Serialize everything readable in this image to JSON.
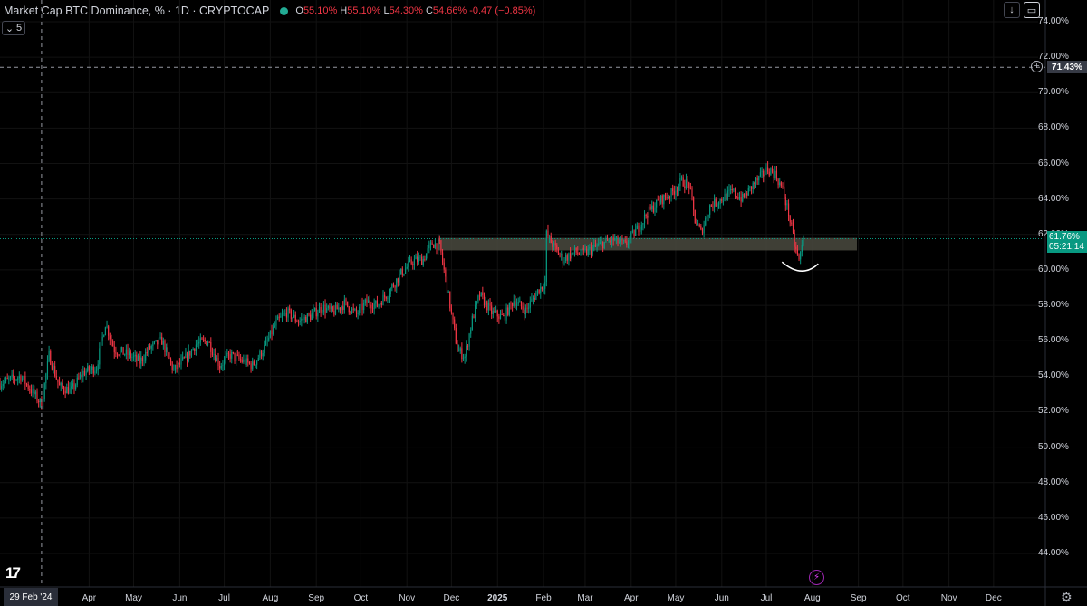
{
  "legend": {
    "title": "Market Cap BTC Dominance, % · 1D · CRYPTOCAP",
    "open_label": "O",
    "open": "55.10%",
    "high_label": "H",
    "high": "55.10%",
    "low_label": "L",
    "low": "54.30%",
    "close_label": "C",
    "close": "54.66%",
    "change": "-0.47 (−0.85%)"
  },
  "collapse_count": "5",
  "price_tag": {
    "value": "61.76%",
    "countdown": "05:21:14"
  },
  "crosshair_tag": "71.43%",
  "date_tag": "29 Feb '24",
  "icons": {
    "logo": "tradingview-logo-icon",
    "download": "arrow-down-icon",
    "fullscreen": "screen-icon",
    "add": "plus-circle-icon",
    "lightning": "lightning-icon",
    "settings": "gear-icon"
  },
  "colors": {
    "up": "#089981",
    "down": "#f23645",
    "zone": "#4a4a3f",
    "accent": "#22ab94"
  },
  "chart_data": {
    "type": "candlestick",
    "title": "Market Cap BTC Dominance, % · 1D · CRYPTOCAP",
    "ylim": [
      43,
      74.8
    ],
    "y_ticks": [
      "74.00%",
      "72.00%",
      "70.00%",
      "68.00%",
      "66.00%",
      "64.00%",
      "62.00%",
      "60.00%",
      "58.00%",
      "56.00%",
      "54.00%",
      "52.00%",
      "50.00%",
      "48.00%",
      "46.00%",
      "44.00%"
    ],
    "y_tick_values": [
      74,
      72,
      70,
      68,
      66,
      64,
      62,
      60,
      58,
      56,
      54,
      52,
      50,
      48,
      46,
      44
    ],
    "x_ticks": [
      "Apr",
      "May",
      "Jun",
      "Jul",
      "Aug",
      "Sep",
      "Oct",
      "Nov",
      "Dec",
      "2025",
      "Feb",
      "Mar",
      "Apr",
      "May",
      "Jun",
      "Jul",
      "Aug",
      "Sep",
      "Oct",
      "Nov",
      "Dec"
    ],
    "x_tick_dates": [
      "2024-04-01",
      "2024-05-01",
      "2024-06-01",
      "2024-07-01",
      "2024-08-01",
      "2024-09-01",
      "2024-10-01",
      "2024-11-01",
      "2024-12-01",
      "2025-01-01",
      "2025-02-01",
      "2025-03-01",
      "2025-04-01",
      "2025-05-01",
      "2025-06-01",
      "2025-07-01",
      "2025-08-01",
      "2025-09-01",
      "2025-10-01",
      "2025-11-01",
      "2025-12-01"
    ],
    "x_range": [
      "2024-02-01",
      "2025-12-31"
    ],
    "path_points": [
      [
        "2024-02-01",
        53.6
      ],
      [
        "2024-02-15",
        54.0
      ],
      [
        "2024-02-29",
        52.4
      ],
      [
        "2024-03-05",
        55.2
      ],
      [
        "2024-03-12",
        53.4
      ],
      [
        "2024-03-20",
        53.2
      ],
      [
        "2024-03-28",
        54.2
      ],
      [
        "2024-04-06",
        54.5
      ],
      [
        "2024-04-12",
        57.0
      ],
      [
        "2024-04-18",
        55.5
      ],
      [
        "2024-04-28",
        55.2
      ],
      [
        "2024-05-05",
        54.8
      ],
      [
        "2024-05-12",
        55.6
      ],
      [
        "2024-05-20",
        56.0
      ],
      [
        "2024-05-28",
        54.3
      ],
      [
        "2024-06-05",
        55.0
      ],
      [
        "2024-06-12",
        55.8
      ],
      [
        "2024-06-20",
        56.0
      ],
      [
        "2024-06-28",
        54.6
      ],
      [
        "2024-07-05",
        55.2
      ],
      [
        "2024-07-12",
        54.9
      ],
      [
        "2024-07-20",
        54.6
      ],
      [
        "2024-07-28",
        55.6
      ],
      [
        "2024-08-05",
        57.0
      ],
      [
        "2024-08-12",
        57.6
      ],
      [
        "2024-08-20",
        57.1
      ],
      [
        "2024-08-28",
        57.4
      ],
      [
        "2024-09-05",
        57.9
      ],
      [
        "2024-09-12",
        57.6
      ],
      [
        "2024-09-20",
        58.1
      ],
      [
        "2024-09-28",
        57.5
      ],
      [
        "2024-10-05",
        58.2
      ],
      [
        "2024-10-12",
        58.0
      ],
      [
        "2024-10-20",
        58.8
      ],
      [
        "2024-10-28",
        59.8
      ],
      [
        "2024-11-05",
        60.5
      ],
      [
        "2024-11-12",
        60.6
      ],
      [
        "2024-11-18",
        61.5
      ],
      [
        "2024-11-23",
        61.4
      ],
      [
        "2024-11-28",
        59.0
      ],
      [
        "2024-12-05",
        55.5
      ],
      [
        "2024-12-10",
        55.1
      ],
      [
        "2024-12-15",
        57.2
      ],
      [
        "2024-12-20",
        58.6
      ],
      [
        "2024-12-28",
        57.6
      ],
      [
        "2025-01-05",
        57.3
      ],
      [
        "2025-01-12",
        58.3
      ],
      [
        "2025-01-20",
        57.7
      ],
      [
        "2025-01-28",
        58.8
      ],
      [
        "2025-02-02",
        59.3
      ],
      [
        "2025-02-03",
        62.0
      ],
      [
        "2025-02-08",
        61.3
      ],
      [
        "2025-02-14",
        60.6
      ],
      [
        "2025-02-22",
        61.0
      ],
      [
        "2025-02-28",
        60.9
      ],
      [
        "2025-03-06",
        61.2
      ],
      [
        "2025-03-13",
        61.5
      ],
      [
        "2025-03-20",
        61.7
      ],
      [
        "2025-03-28",
        61.4
      ],
      [
        "2025-04-05",
        62.3
      ],
      [
        "2025-04-12",
        63.2
      ],
      [
        "2025-04-20",
        63.9
      ],
      [
        "2025-04-28",
        64.3
      ],
      [
        "2025-05-05",
        65.0
      ],
      [
        "2025-05-10",
        64.8
      ],
      [
        "2025-05-14",
        62.8
      ],
      [
        "2025-05-18",
        62.1
      ],
      [
        "2025-05-24",
        63.6
      ],
      [
        "2025-06-01",
        64.0
      ],
      [
        "2025-06-08",
        64.4
      ],
      [
        "2025-06-15",
        64.0
      ],
      [
        "2025-06-22",
        64.8
      ],
      [
        "2025-06-28",
        65.3
      ],
      [
        "2025-07-02",
        65.7
      ],
      [
        "2025-07-07",
        65.4
      ],
      [
        "2025-07-12",
        64.5
      ],
      [
        "2025-07-16",
        63.2
      ],
      [
        "2025-07-20",
        61.4
      ],
      [
        "2025-07-23",
        60.5
      ],
      [
        "2025-07-26",
        61.76
      ]
    ],
    "zone": {
      "from": "2024-11-22",
      "to": "2025-08-31",
      "low": 61.2,
      "high": 61.7
    },
    "last_price": 61.76,
    "crosshair": {
      "date": "2024-02-29",
      "price": 71.43
    },
    "drawing": "curved-arc-under-july-low"
  }
}
